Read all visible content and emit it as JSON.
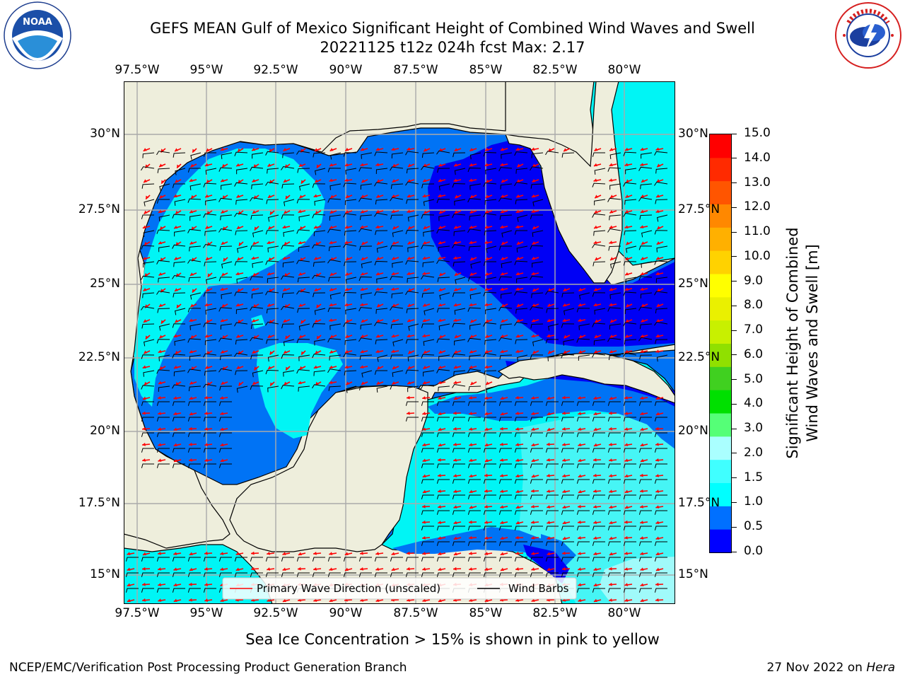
{
  "header": {
    "title_line1": "GEFS MEAN Gulf of Mexico Significant Height of Combined Wind Waves and Swell",
    "title_line2": "20221125 t12z 024h fcst   Max: 2.17"
  },
  "logos": {
    "left_text": "NOAA",
    "left_ring_text": "NATIONAL OCEANIC AND ATMOSPHERIC ADMINISTRATION · U.S. DEPARTMENT OF COMMERCE",
    "right_ring_text": "NATIONAL WEATHER SERVICE"
  },
  "map": {
    "lon_labels": [
      "97.5°W",
      "95°W",
      "92.5°W",
      "90°W",
      "87.5°W",
      "85°W",
      "82.5°W",
      "80°W"
    ],
    "lat_labels_left": [
      "30°N",
      "27.5°N",
      "25°N",
      "22.5°N",
      "20°N",
      "17.5°N",
      "15°N"
    ],
    "lat_labels_right": [
      "30°N",
      "27.5°N",
      "25°N",
      "22.5°N",
      "20°N",
      "17.5°N",
      "15°N"
    ],
    "legend": {
      "wave_label": "Primary Wave Direction (unscaled)",
      "barb_label": "Wind Barbs"
    },
    "colors": {
      "land": "#eeeedc",
      "c0": "#0000f5",
      "c05": "#0073f5",
      "c10": "#00f5f5",
      "c15": "#46f5f5",
      "c20": "#a0fafa",
      "arrow": "#ff0000"
    }
  },
  "colorbar": {
    "label_line1": "Significant Height of Combined",
    "label_line2": "Wind Waves and Swell [m]",
    "ticks": [
      "0.0",
      "0.5",
      "1.0",
      "1.5",
      "2.0",
      "3.0",
      "4.0",
      "5.0",
      "6.0",
      "7.0",
      "8.0",
      "9.0",
      "10.0",
      "11.0",
      "12.0",
      "13.0",
      "14.0",
      "15.0"
    ],
    "colors": [
      "#0000ff",
      "#0070ff",
      "#00ffff",
      "#40ffff",
      "#aaffff",
      "#55ff77",
      "#00e000",
      "#40d020",
      "#90e000",
      "#c8f000",
      "#eaf000",
      "#ffff00",
      "#ffd200",
      "#ffb000",
      "#ff8800",
      "#ff5500",
      "#ff2a00",
      "#ff0000"
    ]
  },
  "notes": {
    "sea_ice": "Sea Ice Concentration > 15% is shown in pink to yellow"
  },
  "footer": {
    "left": "NCEP/EMC/Verification Post Processing Product Generation Branch",
    "right_prefix": "27 Nov 2022 on ",
    "right_machine": "Hera"
  }
}
